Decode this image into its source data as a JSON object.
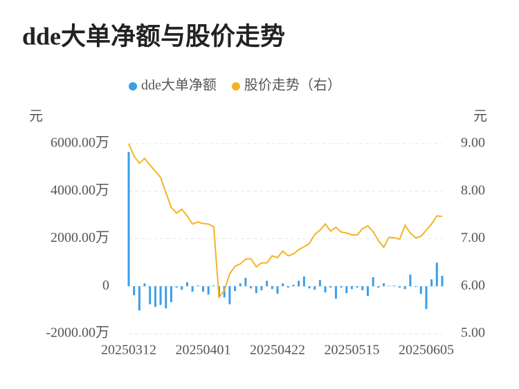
{
  "chart_data": {
    "type": "bar-line",
    "title": "dde大单净额与股价走势",
    "y_label": "元",
    "y2_label": "元",
    "categories": [
      "20250312",
      null,
      null,
      null,
      null,
      null,
      null,
      null,
      null,
      null,
      null,
      null,
      null,
      null,
      "20250401",
      null,
      null,
      null,
      null,
      null,
      null,
      null,
      null,
      null,
      null,
      null,
      null,
      null,
      "20250422",
      null,
      null,
      null,
      null,
      null,
      null,
      null,
      null,
      null,
      null,
      null,
      null,
      null,
      "20250515",
      null,
      null,
      null,
      null,
      null,
      null,
      null,
      null,
      null,
      null,
      null,
      null,
      null,
      "20250605",
      null,
      null,
      null
    ],
    "series": [
      {
        "name": "dde大单净额",
        "type": "bar",
        "color": "#3a9ee8",
        "values": [
          5650,
          -380,
          -1020,
          120,
          -760,
          -870,
          -790,
          -930,
          -670,
          -60,
          -150,
          170,
          -230,
          30,
          -230,
          -350,
          30,
          -440,
          -470,
          -760,
          -200,
          120,
          350,
          -90,
          -290,
          -170,
          230,
          -120,
          -320,
          120,
          -60,
          60,
          230,
          410,
          -90,
          -150,
          260,
          -260,
          -60,
          -520,
          -60,
          -290,
          -120,
          -60,
          -170,
          -410,
          380,
          -60,
          120,
          20,
          30,
          -60,
          -120,
          490,
          -30,
          -320,
          -960,
          290,
          990,
          440
        ]
      },
      {
        "name": "股价走势（右）",
        "type": "line",
        "axis": "y2",
        "color": "#f5b324",
        "values": [
          9.0,
          8.74,
          8.59,
          8.69,
          8.55,
          8.42,
          8.29,
          7.97,
          7.66,
          7.54,
          7.62,
          7.48,
          7.31,
          7.35,
          7.32,
          7.31,
          7.25,
          5.77,
          5.91,
          6.26,
          6.42,
          6.47,
          6.57,
          6.58,
          6.41,
          6.49,
          6.49,
          6.64,
          6.6,
          6.74,
          6.64,
          6.68,
          6.77,
          6.83,
          6.9,
          7.09,
          7.18,
          7.31,
          7.16,
          7.24,
          7.14,
          7.12,
          7.08,
          7.08,
          7.21,
          7.27,
          7.15,
          6.96,
          6.82,
          7.03,
          7.02,
          6.99,
          7.28,
          7.12,
          7.02,
          7.05,
          7.18,
          7.31,
          7.48,
          7.47
        ]
      }
    ],
    "ylim": [
      -2000,
      6000
    ],
    "yticks": [
      {
        "value": -2000,
        "label": "-2000.00万"
      },
      0,
      {
        "value": 2000,
        "label": "2000.00万"
      },
      {
        "value": 4000,
        "label": "4000.00万"
      },
      {
        "value": 6000,
        "label": "6000.00万"
      }
    ],
    "y2lim": [
      5,
      9
    ],
    "y2ticks": [
      {
        "value": 5,
        "label": "5.00"
      },
      {
        "value": 6,
        "label": "6.00"
      },
      {
        "value": 7,
        "label": "7.00"
      },
      {
        "value": 8,
        "label": "8.00"
      },
      {
        "value": 9,
        "label": "9.00"
      }
    ],
    "grid": true,
    "legend": "top"
  }
}
